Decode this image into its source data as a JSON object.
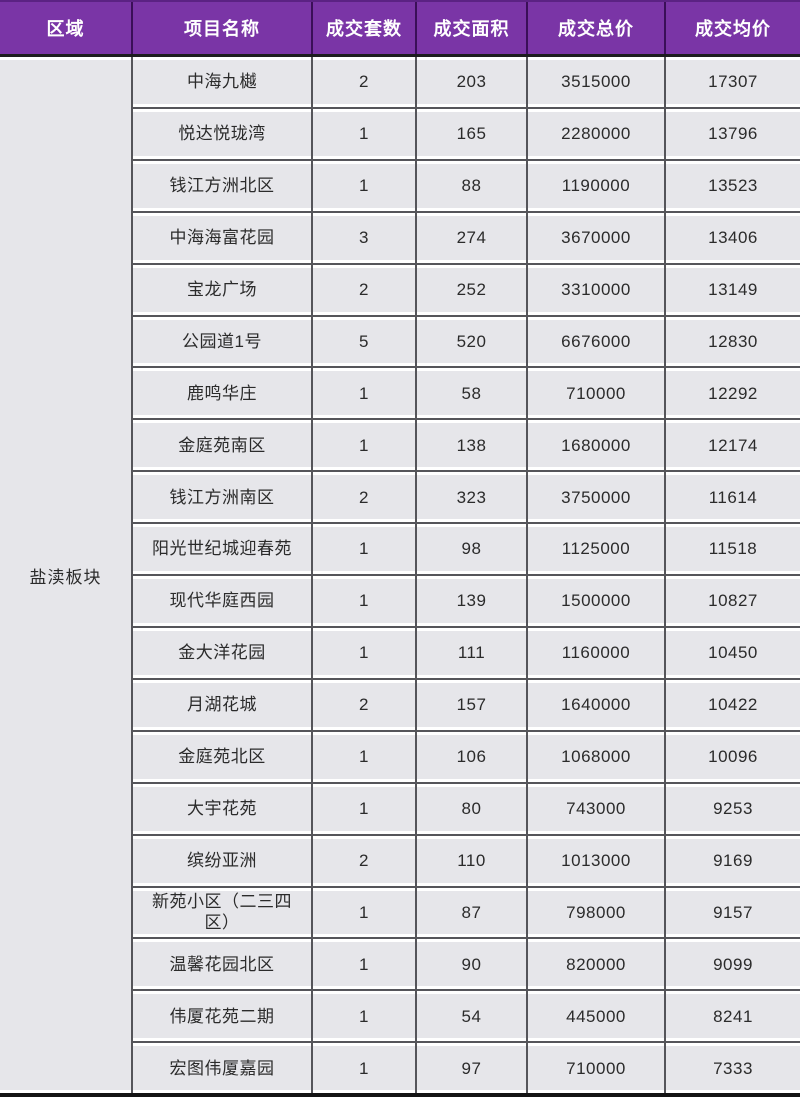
{
  "chart_data": {
    "type": "table",
    "columns": [
      "区域",
      "项目名称",
      "成交套数",
      "成交面积",
      "成交总价",
      "成交均价"
    ],
    "region": "盐渎板块",
    "rows": [
      {
        "name": "中海九樾",
        "units": "2",
        "area": "203",
        "total": "3515000",
        "avg": "17307"
      },
      {
        "name": "悦达悦珑湾",
        "units": "1",
        "area": "165",
        "total": "2280000",
        "avg": "13796"
      },
      {
        "name": "钱江方洲北区",
        "units": "1",
        "area": "88",
        "total": "1190000",
        "avg": "13523"
      },
      {
        "name": "中海海富花园",
        "units": "3",
        "area": "274",
        "total": "3670000",
        "avg": "13406"
      },
      {
        "name": "宝龙广场",
        "units": "2",
        "area": "252",
        "total": "3310000",
        "avg": "13149"
      },
      {
        "name": "公园道1号",
        "units": "5",
        "area": "520",
        "total": "6676000",
        "avg": "12830"
      },
      {
        "name": "鹿鸣华庄",
        "units": "1",
        "area": "58",
        "total": "710000",
        "avg": "12292"
      },
      {
        "name": "金庭苑南区",
        "units": "1",
        "area": "138",
        "total": "1680000",
        "avg": "12174"
      },
      {
        "name": "钱江方洲南区",
        "units": "2",
        "area": "323",
        "total": "3750000",
        "avg": "11614"
      },
      {
        "name": "阳光世纪城迎春苑",
        "units": "1",
        "area": "98",
        "total": "1125000",
        "avg": "11518"
      },
      {
        "name": "现代华庭西园",
        "units": "1",
        "area": "139",
        "total": "1500000",
        "avg": "10827"
      },
      {
        "name": "金大洋花园",
        "units": "1",
        "area": "111",
        "total": "1160000",
        "avg": "10450"
      },
      {
        "name": "月湖花城",
        "units": "2",
        "area": "157",
        "total": "1640000",
        "avg": "10422"
      },
      {
        "name": "金庭苑北区",
        "units": "1",
        "area": "106",
        "total": "1068000",
        "avg": "10096"
      },
      {
        "name": "大宇花苑",
        "units": "1",
        "area": "80",
        "total": "743000",
        "avg": "9253"
      },
      {
        "name": "缤纷亚洲",
        "units": "2",
        "area": "110",
        "total": "1013000",
        "avg": "9169"
      },
      {
        "name": "新苑小区（二三四区）",
        "units": "1",
        "area": "87",
        "total": "798000",
        "avg": "9157"
      },
      {
        "name": "温馨花园北区",
        "units": "1",
        "area": "90",
        "total": "820000",
        "avg": "9099"
      },
      {
        "name": "伟厦花苑二期",
        "units": "1",
        "area": "54",
        "total": "445000",
        "avg": "8241"
      },
      {
        "name": "宏图伟厦嘉园",
        "units": "1",
        "area": "97",
        "total": "710000",
        "avg": "7333"
      }
    ]
  },
  "colors": {
    "header_bg": "#7A35A6",
    "header_separator": "#3A0F58",
    "header_text": "#FFFFFF",
    "cell_bg": "#E6E6EA",
    "grid_line": "#55555A",
    "text": "#2B2B2B",
    "table_bottom_border": "#141414"
  }
}
